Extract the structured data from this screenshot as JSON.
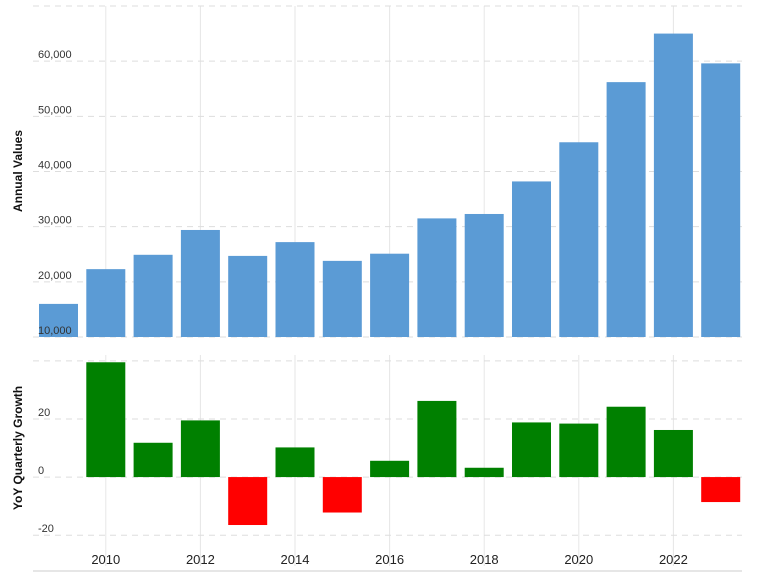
{
  "chart_data": [
    {
      "type": "bar",
      "panel": "top",
      "ylabel": "Annual Values",
      "categories": [
        "2009",
        "2010",
        "2011",
        "2012",
        "2013",
        "2014",
        "2015",
        "2016",
        "2017",
        "2018",
        "2019",
        "2020",
        "2021",
        "2022",
        "2023"
      ],
      "values": [
        16000,
        22300,
        24900,
        29400,
        24700,
        27200,
        23800,
        25100,
        31500,
        32300,
        38200,
        45300,
        56200,
        65000,
        59600
      ],
      "ylim": [
        10000,
        70000
      ],
      "yticks": [
        10000,
        20000,
        30000,
        40000,
        50000,
        60000
      ],
      "ytick_labels": [
        "10,000",
        "20,000",
        "30,000",
        "40,000",
        "50,000",
        "60,000"
      ],
      "bar_color": "#5b9bd5",
      "grid": true
    },
    {
      "type": "bar",
      "panel": "bottom",
      "ylabel": "YoY Quarterly Growth",
      "categories": [
        "2010",
        "2011",
        "2012",
        "2013",
        "2014",
        "2015",
        "2016",
        "2017",
        "2018",
        "2019",
        "2020",
        "2021",
        "2022",
        "2023"
      ],
      "values": [
        39.5,
        11.8,
        19.5,
        -16.5,
        10.2,
        -12.2,
        5.6,
        26.2,
        3.2,
        18.8,
        18.4,
        24.2,
        16.2,
        -8.6
      ],
      "ylim": [
        -22,
        42
      ],
      "yticks": [
        -20,
        0,
        20
      ],
      "ytick_labels": [
        "-20",
        "0",
        "20"
      ],
      "positive_color": "#008000",
      "negative_color": "#ff0000",
      "grid": true
    }
  ],
  "x_axis": {
    "tick_labels": [
      "2010",
      "2012",
      "2014",
      "2016",
      "2018",
      "2020",
      "2022"
    ]
  }
}
